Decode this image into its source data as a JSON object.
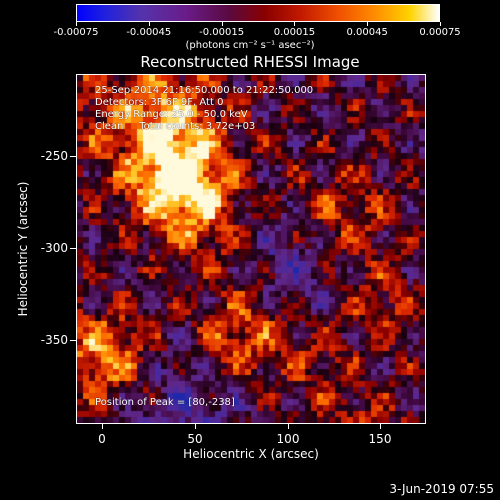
{
  "colorbar": {
    "tick_labels": [
      "-0.00075",
      "-0.00045",
      "-0.00015",
      "0.00015",
      "0.00045",
      "0.00075"
    ],
    "units": "(photons cm⁻² s⁻¹ asec⁻²)"
  },
  "title": "Reconstructed RHESSI Image",
  "info": {
    "time_range": "25-Sep-2014 21:16:50.000 to 21:22:50.000",
    "detectors": "Detectors: 3F 6F 9F, Att 0",
    "energy": "Energy Range: 25.0 - 50.0 keV",
    "clean": "Clean     Total counts: 3.72e+03",
    "peak": "Position of Peak = [80,-238]"
  },
  "axes": {
    "x_title": "Heliocentric X (arcsec)",
    "y_title": "Heliocentric Y (arcsec)",
    "x_ticks": [
      "0",
      "50",
      "100",
      "150"
    ],
    "y_ticks": [
      "-250",
      "-300",
      "-350"
    ]
  },
  "footer": {
    "timestamp": "3-Jun-2019 07:55"
  },
  "chart_data": {
    "type": "heatmap",
    "title": "Reconstructed RHESSI Image",
    "xlabel": "Heliocentric X (arcsec)",
    "ylabel": "Heliocentric Y (arcsec)",
    "xlim": [
      -13,
      175
    ],
    "ylim": [
      -394,
      -206
    ],
    "x_ticks": [
      0,
      50,
      100,
      150
    ],
    "y_ticks": [
      -250,
      -300,
      -350
    ],
    "colorbar_range": [
      -0.00075,
      0.00075
    ],
    "peak_position": [
      80,
      -238
    ]
  }
}
